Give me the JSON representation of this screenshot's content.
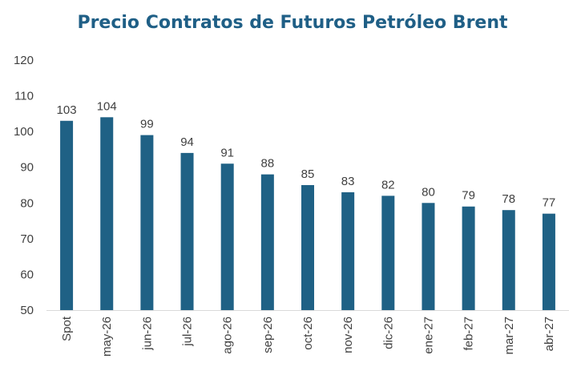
{
  "chart_data": {
    "type": "bar",
    "title": "Precio Contratos de Futuros Petróleo Brent",
    "xlabel": "",
    "ylabel": "",
    "categories": [
      "Spot",
      "may-26",
      "jun-26",
      "jul-26",
      "ago-26",
      "sep-26",
      "oct-26",
      "nov-26",
      "dic-26",
      "ene-27",
      "feb-27",
      "mar-27",
      "abr-27"
    ],
    "values": [
      103,
      104,
      99,
      94,
      91,
      88,
      85,
      83,
      82,
      80,
      79,
      78,
      77
    ],
    "data_labels": [
      "103",
      "104",
      "99",
      "94",
      "91",
      "88",
      "85",
      "83",
      "82",
      "80",
      "79",
      "78",
      "77"
    ],
    "ylim": [
      50,
      120
    ],
    "yticks": [
      "50",
      "60",
      "70",
      "80",
      "90",
      "100",
      "110",
      "120"
    ],
    "grid": false,
    "legend": "none",
    "bar_color": "#1f6185",
    "title_color": "#1f5f86"
  }
}
